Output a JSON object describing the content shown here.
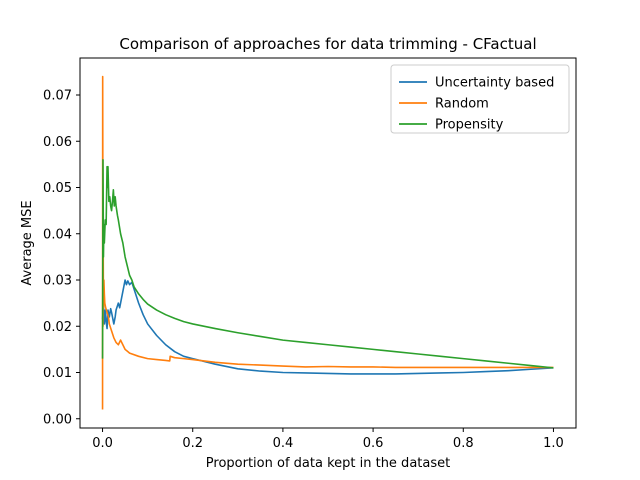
{
  "chart_data": {
    "type": "line",
    "title": "Comparison of approaches for data trimming - CFactual",
    "xlabel": "Proportion of data kept in the dataset",
    "ylabel": "Average MSE",
    "xlim": [
      -0.05,
      1.05
    ],
    "ylim": [
      -0.002,
      0.078
    ],
    "xticks": [
      0.0,
      0.2,
      0.4,
      0.6,
      0.8,
      1.0
    ],
    "xtick_labels": [
      "0.0",
      "0.2",
      "0.4",
      "0.6",
      "0.8",
      "1.0"
    ],
    "yticks": [
      0.0,
      0.01,
      0.02,
      0.03,
      0.04,
      0.05,
      0.06,
      0.07
    ],
    "ytick_labels": [
      "0.00",
      "0.01",
      "0.02",
      "0.03",
      "0.04",
      "0.05",
      "0.06",
      "0.07"
    ],
    "grid": false,
    "legend_position": "top-right",
    "series": [
      {
        "name": "Uncertainty based",
        "color": "#1f77b4",
        "x": [
          0.0,
          0.002,
          0.004,
          0.006,
          0.008,
          0.01,
          0.012,
          0.015,
          0.018,
          0.02,
          0.025,
          0.028,
          0.03,
          0.035,
          0.038,
          0.04,
          0.045,
          0.05,
          0.053,
          0.056,
          0.06,
          0.065,
          0.07,
          0.08,
          0.09,
          0.1,
          0.12,
          0.14,
          0.16,
          0.18,
          0.2,
          0.25,
          0.3,
          0.35,
          0.4,
          0.45,
          0.5,
          0.55,
          0.6,
          0.65,
          0.7,
          0.75,
          0.8,
          0.85,
          0.9,
          0.95,
          1.0
        ],
        "y": [
          0.0215,
          0.0245,
          0.0205,
          0.0235,
          0.021,
          0.0195,
          0.0235,
          0.022,
          0.0238,
          0.023,
          0.0205,
          0.022,
          0.0235,
          0.025,
          0.024,
          0.025,
          0.0275,
          0.03,
          0.029,
          0.0298,
          0.029,
          0.0295,
          0.028,
          0.025,
          0.0225,
          0.0205,
          0.018,
          0.016,
          0.0145,
          0.0135,
          0.013,
          0.0118,
          0.0108,
          0.0103,
          0.01,
          0.0099,
          0.0098,
          0.0097,
          0.0097,
          0.0097,
          0.0098,
          0.0099,
          0.01,
          0.0102,
          0.0104,
          0.0107,
          0.011
        ]
      },
      {
        "name": "Random",
        "color": "#ff7f0e",
        "x": [
          0.0,
          0.0003,
          0.0006,
          0.001,
          0.0015,
          0.002,
          0.003,
          0.004,
          0.005,
          0.007,
          0.01,
          0.013,
          0.015,
          0.02,
          0.025,
          0.03,
          0.035,
          0.04,
          0.05,
          0.06,
          0.08,
          0.1,
          0.12,
          0.14,
          0.149,
          0.15,
          0.16,
          0.18,
          0.2,
          0.25,
          0.3,
          0.35,
          0.4,
          0.45,
          0.5,
          0.55,
          0.6,
          0.65,
          0.7,
          0.75,
          0.8,
          0.85,
          0.9,
          0.95,
          1.0
        ],
        "y": [
          0.002,
          0.074,
          0.056,
          0.02,
          0.0365,
          0.024,
          0.03,
          0.027,
          0.025,
          0.024,
          0.023,
          0.022,
          0.0205,
          0.019,
          0.0175,
          0.0165,
          0.016,
          0.017,
          0.015,
          0.0142,
          0.0135,
          0.013,
          0.0128,
          0.0126,
          0.0125,
          0.0135,
          0.0132,
          0.013,
          0.0128,
          0.0122,
          0.0118,
          0.0116,
          0.0114,
          0.0112,
          0.0113,
          0.0112,
          0.0112,
          0.0111,
          0.0111,
          0.0111,
          0.0111,
          0.0111,
          0.0111,
          0.0111,
          0.0111
        ]
      },
      {
        "name": "Propensity",
        "color": "#2ca02c",
        "x": [
          0.0,
          0.001,
          0.002,
          0.003,
          0.004,
          0.006,
          0.008,
          0.01,
          0.011,
          0.012,
          0.014,
          0.016,
          0.018,
          0.02,
          0.022,
          0.024,
          0.026,
          0.028,
          0.03,
          0.033,
          0.035,
          0.04,
          0.045,
          0.05,
          0.055,
          0.06,
          0.065,
          0.07,
          0.08,
          0.09,
          0.1,
          0.12,
          0.14,
          0.16,
          0.18,
          0.2,
          0.25,
          0.3,
          0.35,
          0.4,
          0.45,
          0.5,
          0.55,
          0.6,
          0.65,
          0.7,
          0.75,
          0.8,
          0.85,
          0.9,
          0.95,
          1.0
        ],
        "y": [
          0.013,
          0.056,
          0.035,
          0.042,
          0.038,
          0.043,
          0.042,
          0.0545,
          0.05,
          0.0545,
          0.047,
          0.048,
          0.046,
          0.045,
          0.047,
          0.0495,
          0.046,
          0.048,
          0.046,
          0.044,
          0.043,
          0.04,
          0.038,
          0.035,
          0.033,
          0.031,
          0.03,
          0.0285,
          0.027,
          0.0258,
          0.0248,
          0.0235,
          0.0225,
          0.0217,
          0.021,
          0.0205,
          0.0195,
          0.0186,
          0.0178,
          0.017,
          0.0165,
          0.016,
          0.0155,
          0.015,
          0.0145,
          0.014,
          0.0135,
          0.013,
          0.0125,
          0.012,
          0.0115,
          0.011
        ]
      }
    ]
  }
}
